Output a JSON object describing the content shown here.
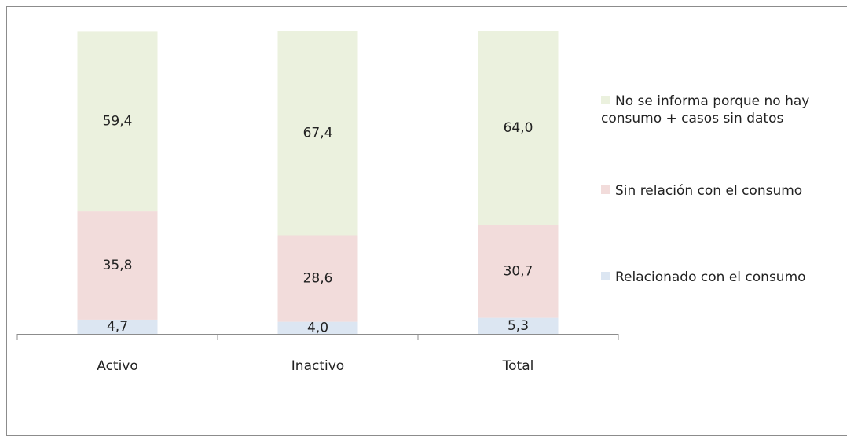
{
  "chart_data": {
    "type": "stacked_bar",
    "categories": [
      "Activo",
      "Inactivo",
      "Total"
    ],
    "series": [
      {
        "name": "Relacionado con el consumo",
        "color": "#dce6f2",
        "values": [
          4.7,
          4.0,
          5.3
        ],
        "value_labels": [
          "4,7",
          "4,0",
          "5,3"
        ]
      },
      {
        "name": "Sin relación con el consumo",
        "color": "#f2dcdb",
        "values": [
          35.8,
          28.6,
          30.7
        ],
        "value_labels": [
          "35,8",
          "28,6",
          "30,7"
        ]
      },
      {
        "name": "No se informa porque no hay consumo + casos sin datos",
        "color": "#ebf1de",
        "values": [
          59.4,
          67.4,
          64.0
        ],
        "value_labels": [
          "59,4",
          "67,4",
          "64,0"
        ]
      }
    ],
    "ylim": [
      0,
      100
    ]
  }
}
